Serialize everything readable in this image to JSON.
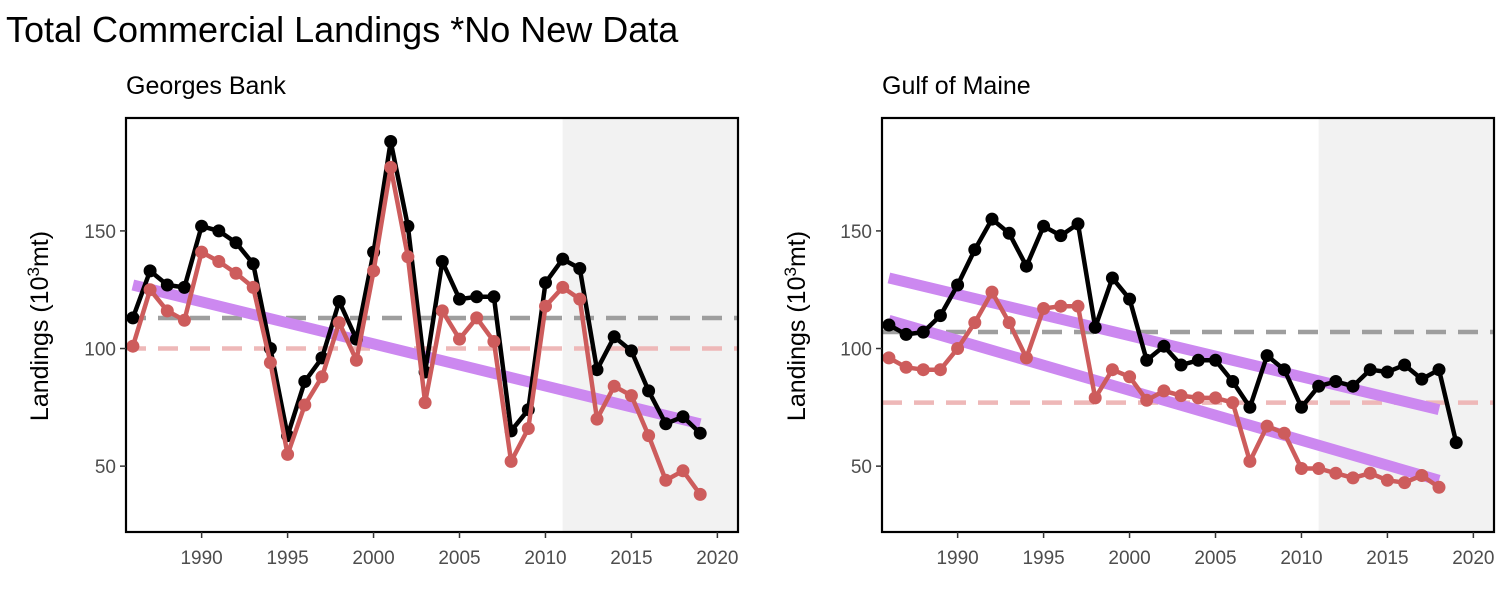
{
  "title": "Total Commercial Landings *No New Data",
  "colors": {
    "total": "#000000",
    "commercial": "#cd5c5c",
    "trend": "#cc88f0",
    "mean_total": "#9e9e9e",
    "mean_commercial": "#eeb8b8",
    "shade": "#f2f2f2"
  },
  "chart_data": [
    {
      "type": "line",
      "title": "Georges Bank",
      "ylabel_main": "Landings (10",
      "ylabel_sup": "3",
      "ylabel_tail": "mt)",
      "xlim": [
        1985.6,
        2021.2
      ],
      "ylim": [
        22,
        198
      ],
      "xticks": [
        1990,
        1995,
        2000,
        2005,
        2010,
        2015,
        2020
      ],
      "yticks": [
        50,
        100,
        150
      ],
      "shade_start": 2011,
      "x": [
        1986,
        1987,
        1988,
        1989,
        1990,
        1991,
        1992,
        1993,
        1994,
        1995,
        1996,
        1997,
        1998,
        1999,
        2000,
        2001,
        2002,
        2003,
        2004,
        2005,
        2006,
        2007,
        2008,
        2009,
        2010,
        2011,
        2012,
        2013,
        2014,
        2015,
        2016,
        2017,
        2018,
        2019
      ],
      "series": [
        {
          "key": "total",
          "values": [
            113,
            133,
            127,
            126,
            152,
            150,
            145,
            136,
            100,
            63,
            86,
            96,
            120,
            104,
            141,
            188,
            152,
            90,
            137,
            121,
            122,
            122,
            65,
            74,
            128,
            138,
            134,
            91,
            105,
            99,
            82,
            68,
            71,
            64
          ]
        },
        {
          "key": "commercial",
          "values": [
            101,
            125,
            116,
            112,
            141,
            137,
            132,
            126,
            94,
            55,
            76,
            88,
            111,
            95,
            133,
            177,
            139,
            77,
            116,
            104,
            113,
            103,
            52,
            66,
            118,
            126,
            121,
            70,
            84,
            80,
            63,
            44,
            48,
            38
          ]
        }
      ],
      "trends": [
        {
          "x": [
            1986,
            2019
          ],
          "y": [
            127,
            68
          ]
        }
      ],
      "means": [
        {
          "key": "mean_total",
          "y": 113
        },
        {
          "key": "mean_commercial",
          "y": 100
        }
      ]
    },
    {
      "type": "line",
      "title": "Gulf of Maine",
      "ylabel_main": "Landings (10",
      "ylabel_sup": "3",
      "ylabel_tail": "mt)",
      "xlim": [
        1985.6,
        2021.2
      ],
      "ylim": [
        22,
        198
      ],
      "xticks": [
        1990,
        1995,
        2000,
        2005,
        2010,
        2015,
        2020
      ],
      "yticks": [
        50,
        100,
        150
      ],
      "shade_start": 2011,
      "x": [
        1986,
        1987,
        1988,
        1989,
        1990,
        1991,
        1992,
        1993,
        1994,
        1995,
        1996,
        1997,
        1998,
        1999,
        2000,
        2001,
        2002,
        2003,
        2004,
        2005,
        2006,
        2007,
        2008,
        2009,
        2010,
        2011,
        2012,
        2013,
        2014,
        2015,
        2016,
        2017,
        2018,
        2019
      ],
      "series": [
        {
          "key": "total",
          "values": [
            110,
            106,
            107,
            114,
            127,
            142,
            155,
            149,
            135,
            152,
            148,
            153,
            109,
            130,
            121,
            95,
            101,
            93,
            95,
            95,
            86,
            75,
            97,
            91,
            75,
            84,
            86,
            84,
            91,
            90,
            93,
            87,
            91,
            60
          ]
        },
        {
          "key": "commercial",
          "values": [
            96,
            92,
            91,
            91,
            100,
            111,
            124,
            111,
            96,
            117,
            118,
            118,
            79,
            91,
            88,
            78,
            82,
            80,
            79,
            79,
            77,
            52,
            67,
            64,
            49,
            49,
            47,
            45,
            47,
            44,
            43,
            46,
            41,
            null
          ]
        }
      ],
      "trends": [
        {
          "x": [
            1986,
            2018
          ],
          "y": [
            130,
            74
          ]
        },
        {
          "x": [
            1986,
            2018
          ],
          "y": [
            112,
            44
          ]
        }
      ],
      "means": [
        {
          "key": "mean_total",
          "y": 107
        },
        {
          "key": "mean_commercial",
          "y": 77
        }
      ]
    }
  ]
}
